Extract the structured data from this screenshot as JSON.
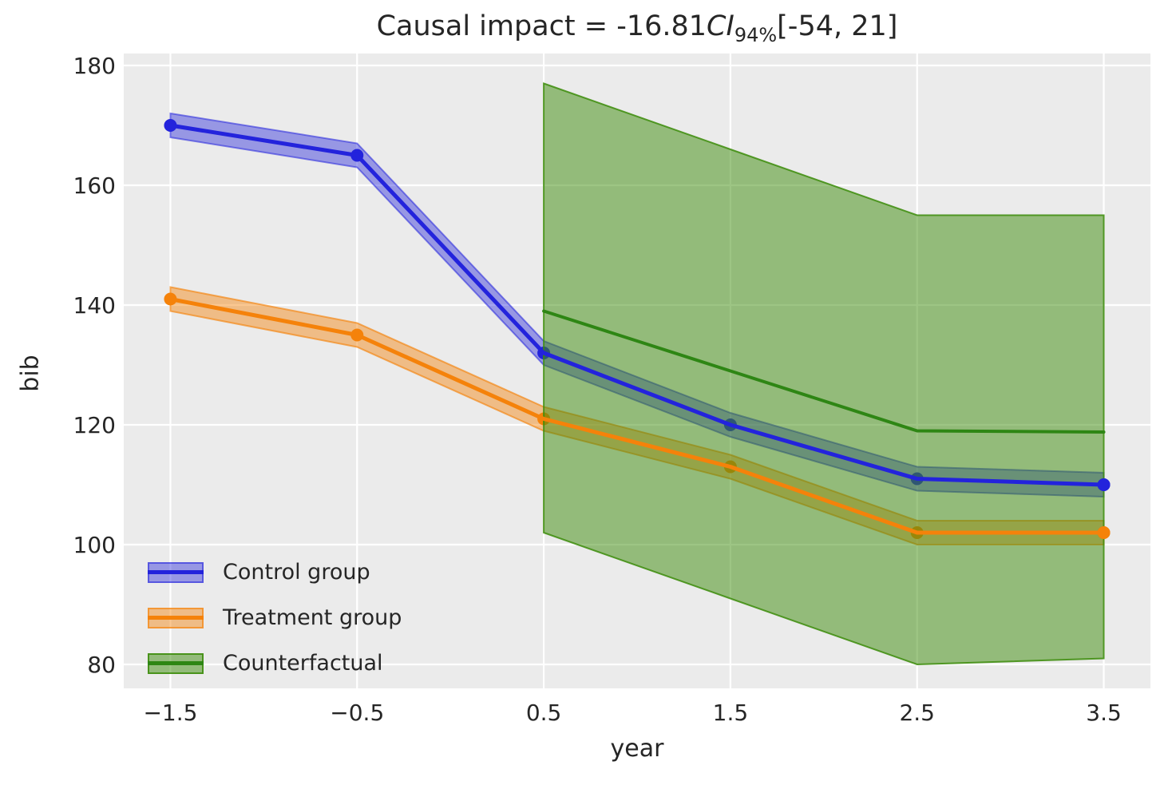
{
  "title": {
    "prefix": "Causal impact = -16.81",
    "ci_symbol": "CI",
    "ci_subscript": "94%",
    "interval": "[-54, 21]"
  },
  "chart_data": {
    "type": "line",
    "title": "Causal impact = -16.81 CI 94% [-54, 21]",
    "xlabel": "year",
    "ylabel": "bib",
    "grid": true,
    "plot_background": "#ebebeb",
    "gridline_color": "#ffffff",
    "text_color": "#262626",
    "xlim": [
      -1.75,
      3.75
    ],
    "ylim": [
      76,
      182
    ],
    "x_ticks": [
      -1.5,
      -0.5,
      0.5,
      1.5,
      2.5,
      3.5
    ],
    "x_tick_labels": [
      "−1.5",
      "−0.5",
      "0.5",
      "1.5",
      "2.5",
      "3.5"
    ],
    "y_ticks": [
      180,
      160,
      140,
      120,
      100,
      80
    ],
    "y_tick_labels": [
      "180",
      "160",
      "140",
      "120",
      "100",
      "80"
    ],
    "legend_position": "lower left",
    "series": [
      {
        "name": "Control group",
        "line_color": "#2323dc",
        "band_fill": "rgba(35,35,220,0.42)",
        "band_edge": "rgba(35,35,220,0.55)",
        "markers": true,
        "x": [
          -1.5,
          -0.5,
          0.5,
          1.5,
          2.5,
          3.5
        ],
        "y": [
          170,
          165,
          132,
          120,
          111,
          110
        ],
        "band_lower": [
          168,
          163,
          130,
          118,
          109,
          108
        ],
        "band_upper": [
          172,
          167,
          134,
          122,
          113,
          112
        ]
      },
      {
        "name": "Treatment group",
        "line_color": "#f5820a",
        "band_fill": "rgba(245,130,10,0.45)",
        "band_edge": "rgba(245,130,10,0.65)",
        "markers": true,
        "x": [
          -1.5,
          -0.5,
          0.5,
          1.5,
          2.5,
          3.5
        ],
        "y": [
          141,
          135,
          121,
          113,
          102,
          102
        ],
        "band_lower": [
          139,
          133,
          119,
          111,
          100,
          100
        ],
        "band_upper": [
          143,
          137,
          123,
          115,
          104,
          104
        ]
      },
      {
        "name": "Counterfactual",
        "line_color": "#2e8614",
        "band_fill": "rgba(60,140,10,0.5)",
        "band_edge": "rgba(60,140,10,0.85)",
        "markers": false,
        "x": [
          0.5,
          1.5,
          2.5,
          3.5
        ],
        "y": [
          139,
          129,
          119,
          118.8
        ],
        "band_lower": [
          102,
          91,
          80,
          81
        ],
        "band_upper": [
          177,
          166,
          155,
          155
        ]
      }
    ]
  }
}
